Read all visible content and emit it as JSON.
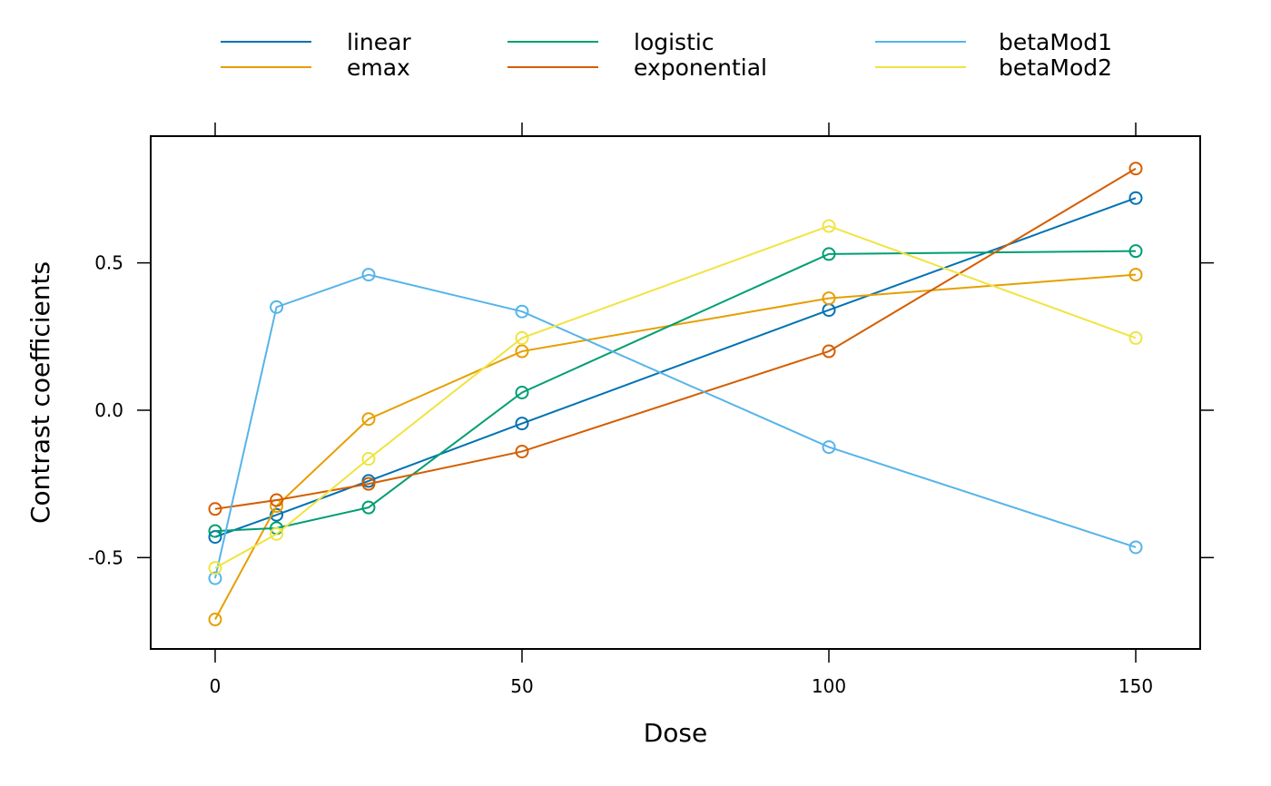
{
  "chart_data": {
    "type": "line",
    "title": "",
    "xlabel": "Dose",
    "ylabel": "Contrast coefficients",
    "x": [
      0,
      10,
      25,
      50,
      100,
      150
    ],
    "xlim": [
      -10.5,
      160.5
    ],
    "ylim": [
      -0.81,
      0.93
    ],
    "xticks": [
      0,
      50,
      100,
      150
    ],
    "xtick_labels": [
      "0",
      "50",
      "100",
      "150"
    ],
    "yticks": [
      -0.5,
      0.0,
      0.5
    ],
    "ytick_labels": [
      "-0.5",
      "0.0",
      "0.5"
    ],
    "grid": false,
    "legend_position": "top",
    "marker": "open-circle",
    "series": [
      {
        "name": "linear",
        "color": "#0072B2",
        "values": [
          -0.43,
          -0.355,
          -0.24,
          -0.045,
          0.34,
          0.72
        ]
      },
      {
        "name": "emax",
        "color": "#E69F00",
        "values": [
          -0.71,
          -0.325,
          -0.03,
          0.2,
          0.38,
          0.46
        ]
      },
      {
        "name": "logistic",
        "color": "#009E73",
        "values": [
          -0.41,
          -0.4,
          -0.33,
          0.06,
          0.53,
          0.54
        ]
      },
      {
        "name": "exponential",
        "color": "#D55E00",
        "values": [
          -0.335,
          -0.305,
          -0.25,
          -0.14,
          0.2,
          0.82
        ]
      },
      {
        "name": "betaMod1",
        "color": "#56B4E9",
        "values": [
          -0.57,
          0.35,
          0.46,
          0.335,
          -0.125,
          -0.465
        ]
      },
      {
        "name": "betaMod2",
        "color": "#F0E442",
        "values": [
          -0.535,
          -0.42,
          -0.165,
          0.245,
          0.625,
          0.245
        ]
      }
    ]
  }
}
